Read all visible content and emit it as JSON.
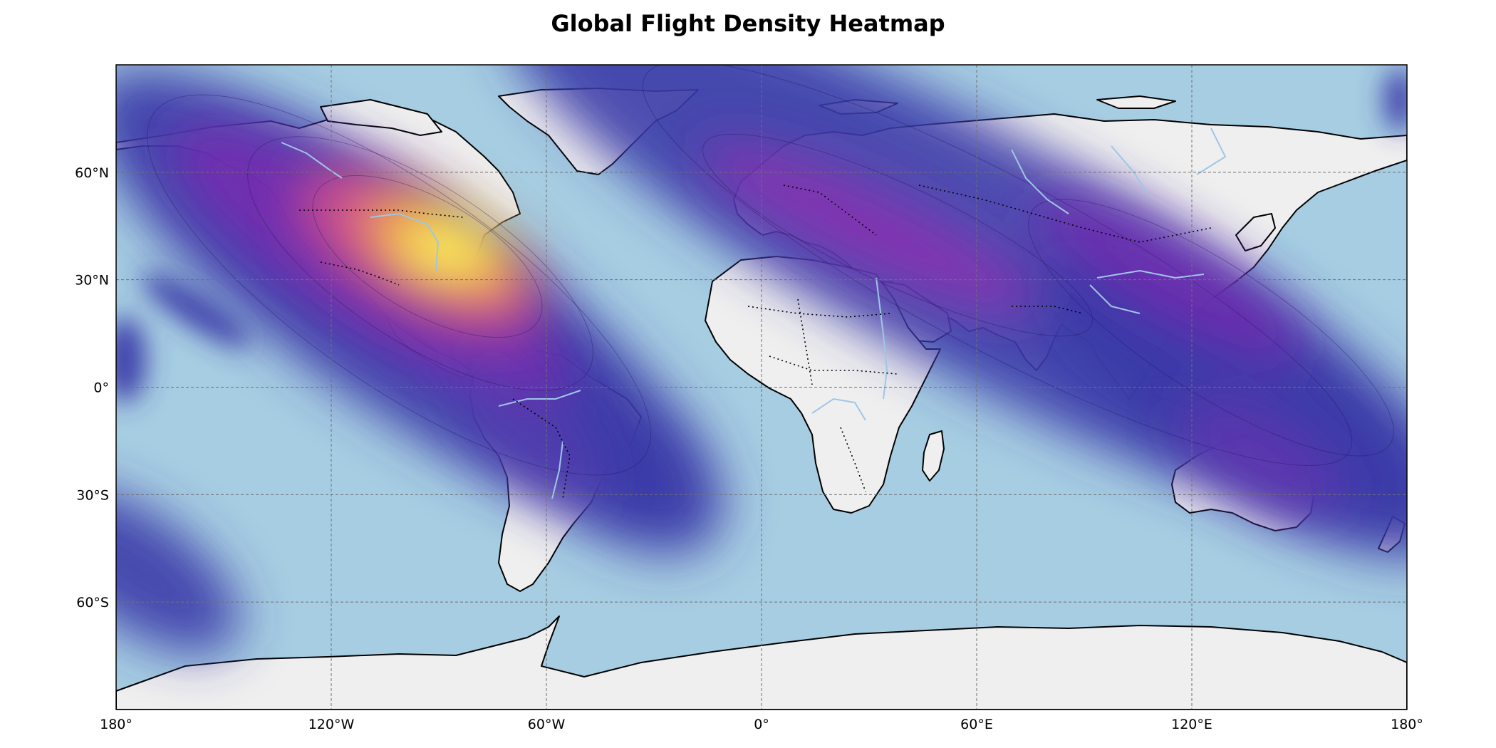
{
  "title": "Global Flight Density Heatmap",
  "map": {
    "projection": "equirectangular",
    "lon_range": [
      -180,
      180
    ],
    "lat_range": [
      -90,
      90
    ],
    "ocean_color": "#a6cde2",
    "land_color": "#efefef",
    "coastline_color": "#000000",
    "river_color": "#9fc6e6",
    "gridlines": true,
    "colormap": "plasma",
    "lon_ticks": [
      {
        "lon": -180,
        "label": "180°"
      },
      {
        "lon": -120,
        "label": "120°W"
      },
      {
        "lon": -60,
        "label": "60°W"
      },
      {
        "lon": 0,
        "label": "0°"
      },
      {
        "lon": 60,
        "label": "60°E"
      },
      {
        "lon": 120,
        "label": "120°E"
      },
      {
        "lon": 180,
        "label": "180°"
      }
    ],
    "lat_ticks": [
      {
        "lat": 60,
        "label": "60°N"
      },
      {
        "lat": 30,
        "label": "30°N"
      },
      {
        "lat": 0,
        "label": "0°"
      },
      {
        "lat": -30,
        "label": "30°S"
      },
      {
        "lat": -60,
        "label": "60°S"
      }
    ],
    "density_peaks": [
      {
        "region": "North America",
        "lon": -90,
        "lat": 40,
        "intensity": 1.0
      },
      {
        "region": "Europe",
        "lon": 15,
        "lat": 48,
        "intensity": 0.55
      },
      {
        "region": "East Asia",
        "lon": 125,
        "lat": 35,
        "intensity": 0.45
      },
      {
        "region": "Australia",
        "lon": 140,
        "lat": -25,
        "intensity": 0.35
      },
      {
        "region": "South America",
        "lon": -55,
        "lat": -15,
        "intensity": 0.3
      }
    ]
  }
}
